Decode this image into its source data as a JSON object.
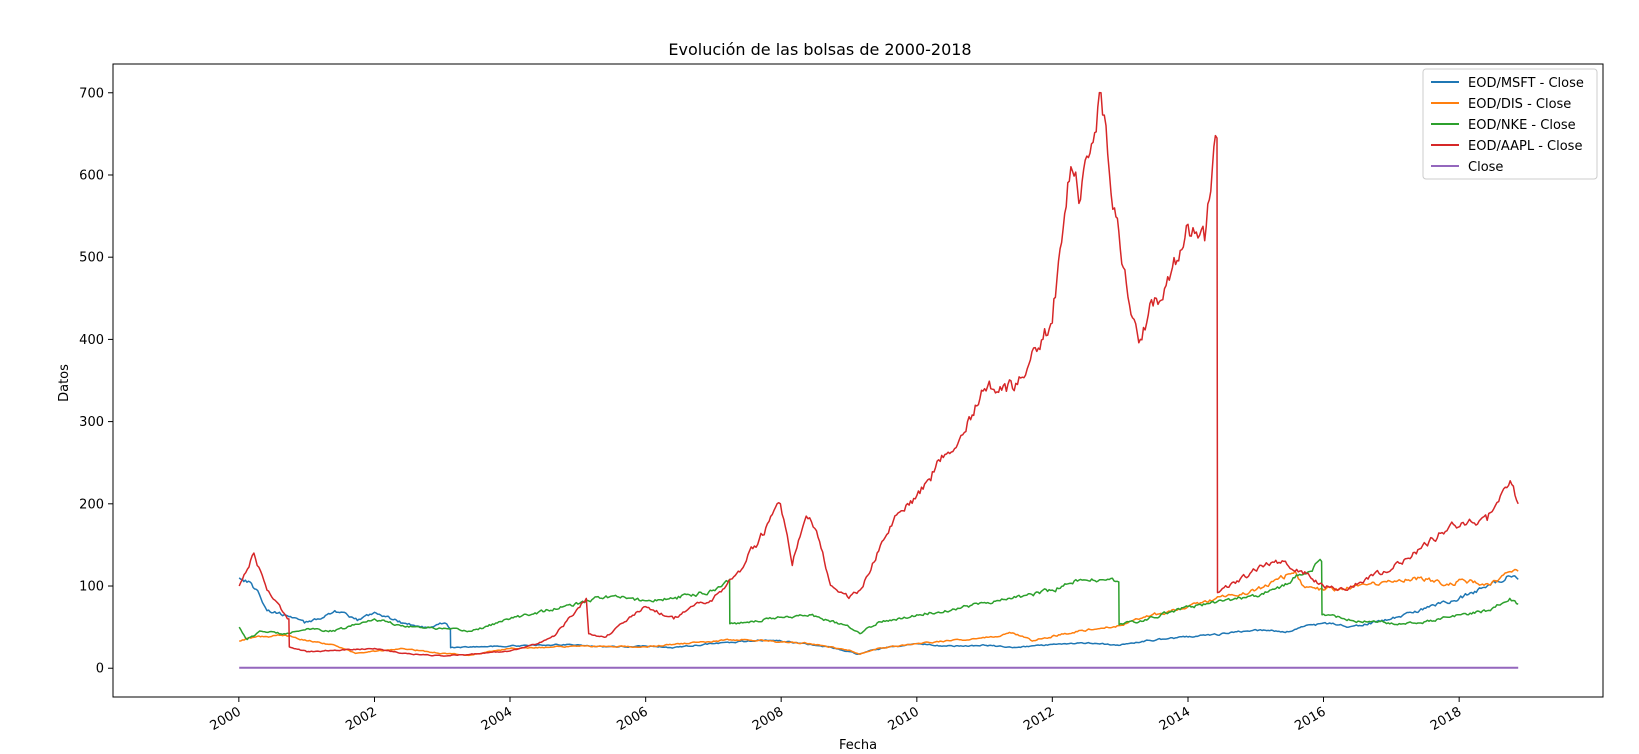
{
  "chart_data": {
    "type": "line",
    "title": "Evolución de las bolsas de 2000-2018",
    "xlabel": "Fecha",
    "ylabel": "Datos",
    "x_ticks": [
      "2000",
      "2002",
      "2004",
      "2006",
      "2008",
      "2010",
      "2012",
      "2014",
      "2016",
      "2018"
    ],
    "xlim": [
      "1998-02-22",
      "2020-02-15"
    ],
    "ylim": [
      -35,
      735
    ],
    "y_ticks": [
      0,
      100,
      200,
      300,
      400,
      500,
      600,
      700
    ],
    "grid": false,
    "legend_position": "top-right",
    "colors": {
      "msft": "#1f77b4",
      "dis": "#ff7f0e",
      "nke": "#2ca02c",
      "aapl": "#d62728",
      "close": "#9467bd"
    },
    "series": [
      {
        "key": "msft",
        "name": "EOD/MSFT - Close",
        "x": [
          "2000-01-03",
          "2000-03-01",
          "2000-04-20",
          "2000-06-01",
          "2000-09-01",
          "2000-12-20",
          "2001-03-01",
          "2001-06-01",
          "2001-10-01",
          "2002-01-01",
          "2002-06-01",
          "2002-10-01",
          "2003-01-15",
          "2003-02-14",
          "2003-02-15",
          "2003-06-01",
          "2004-01-01",
          "2004-11-01",
          "2005-06-01",
          "2006-01-01",
          "2006-06-01",
          "2007-01-01",
          "2007-10-01",
          "2008-01-01",
          "2008-06-01",
          "2008-10-01",
          "2009-02-15",
          "2009-06-01",
          "2010-01-01",
          "2010-06-01",
          "2011-01-01",
          "2011-06-01",
          "2012-01-01",
          "2012-06-01",
          "2013-01-01",
          "2013-06-01",
          "2014-01-01",
          "2014-06-01",
          "2015-01-01",
          "2015-06-01",
          "2016-01-01",
          "2016-06-01",
          "2017-01-01",
          "2017-06-01",
          "2018-01-01",
          "2018-06-01",
          "2018-10-01",
          "2018-11-15"
        ],
        "values": [
          110,
          105,
          90,
          70,
          65,
          55,
          60,
          70,
          58,
          68,
          55,
          50,
          55,
          48,
          25,
          26,
          27,
          29,
          26,
          27,
          25,
          30,
          34,
          33,
          29,
          25,
          17,
          23,
          30,
          27,
          28,
          25,
          29,
          31,
          28,
          34,
          38,
          41,
          47,
          44,
          55,
          51,
          60,
          70,
          85,
          100,
          112,
          108
        ]
      },
      {
        "key": "dis",
        "name": "EOD/DIS - Close",
        "x": [
          "2000-01-03",
          "2000-04-01",
          "2000-09-01",
          "2001-03-01",
          "2001-06-01",
          "2001-09-20",
          "2002-06-01",
          "2003-01-01",
          "2003-06-01",
          "2004-01-01",
          "2005-01-01",
          "2006-01-01",
          "2007-01-01",
          "2007-06-01",
          "2008-01-01",
          "2008-06-01",
          "2009-01-01",
          "2009-03-01",
          "2009-06-01",
          "2010-01-01",
          "2010-06-01",
          "2011-01-01",
          "2011-06-01",
          "2011-09-15",
          "2012-01-01",
          "2012-06-01",
          "2013-01-01",
          "2013-06-01",
          "2014-01-01",
          "2014-06-01",
          "2015-01-01",
          "2015-08-01",
          "2015-09-15",
          "2016-01-01",
          "2016-06-01",
          "2017-01-01",
          "2017-06-01",
          "2017-12-01",
          "2018-01-01",
          "2018-06-01",
          "2018-11-15"
        ],
        "values": [
          33,
          38,
          40,
          32,
          28,
          18,
          24,
          18,
          16,
          24,
          27,
          26,
          33,
          35,
          32,
          30,
          22,
          17,
          24,
          30,
          33,
          37,
          43,
          33,
          39,
          46,
          52,
          63,
          75,
          85,
          95,
          118,
          100,
          95,
          98,
          105,
          110,
          101,
          108,
          103,
          118
        ]
      },
      {
        "key": "nke",
        "name": "EOD/NKE - Close",
        "x": [
          "2000-01-03",
          "2000-02-15",
          "2000-05-01",
          "2000-09-01",
          "2001-01-01",
          "2001-06-01",
          "2002-01-01",
          "2002-06-01",
          "2003-01-01",
          "2003-06-01",
          "2004-01-01",
          "2004-06-01",
          "2005-01-01",
          "2005-06-01",
          "2006-01-01",
          "2006-06-01",
          "2007-01-01",
          "2007-03-29",
          "2007-03-30",
          "2008-01-01",
          "2008-06-01",
          "2009-01-01",
          "2009-03-01",
          "2009-06-01",
          "2010-01-01",
          "2010-06-01",
          "2011-01-01",
          "2011-06-01",
          "2012-01-01",
          "2012-06-01",
          "2012-12-24",
          "2012-12-26",
          "2013-06-01",
          "2014-01-01",
          "2014-06-01",
          "2015-01-01",
          "2015-06-01",
          "2015-12-22",
          "2015-12-24",
          "2016-06-01",
          "2017-01-01",
          "2017-06-01",
          "2018-01-01",
          "2018-06-01",
          "2018-10-01",
          "2018-11-15"
        ],
        "values": [
          50,
          35,
          45,
          42,
          48,
          45,
          60,
          52,
          48,
          45,
          60,
          68,
          78,
          88,
          82,
          85,
          95,
          108,
          54,
          62,
          65,
          50,
          42,
          55,
          65,
          70,
          80,
          85,
          95,
          108,
          105,
          53,
          60,
          75,
          80,
          88,
          100,
          130,
          65,
          58,
          55,
          55,
          65,
          70,
          85,
          78
        ]
      },
      {
        "key": "aapl",
        "name": "EOD/AAPL - Close",
        "x": [
          "2000-01-03",
          "2000-03-22",
          "2000-06-01",
          "2000-09-27",
          "2000-09-29",
          "2001-01-01",
          "2001-06-01",
          "2002-01-01",
          "2002-06-01",
          "2003-01-01",
          "2003-06-01",
          "2004-01-01",
          "2004-06-01",
          "2004-09-01",
          "2005-02-15",
          "2005-02-28",
          "2005-06-01",
          "2005-09-01",
          "2006-01-01",
          "2006-06-01",
          "2006-09-01",
          "2007-01-01",
          "2007-06-01",
          "2007-12-28",
          "2008-03-01",
          "2008-05-15",
          "2008-07-01",
          "2008-10-01",
          "2008-12-31",
          "2009-03-01",
          "2009-06-01",
          "2009-10-01",
          "2010-01-01",
          "2010-06-01",
          "2010-10-01",
          "2011-01-01",
          "2011-06-01",
          "2011-10-01",
          "2012-01-01",
          "2012-04-10",
          "2012-06-01",
          "2012-09-19",
          "2012-12-01",
          "2013-01-01",
          "2013-04-19",
          "2013-06-01",
          "2013-10-01",
          "2014-01-01",
          "2014-04-01",
          "2014-06-06",
          "2014-06-09",
          "2014-10-01",
          "2015-02-01",
          "2015-06-01",
          "2015-10-01",
          "2016-01-01",
          "2016-05-01",
          "2016-10-01",
          "2017-01-01",
          "2017-06-01",
          "2017-12-01",
          "2018-06-01",
          "2018-10-03",
          "2018-11-15"
        ],
        "values": [
          100,
          140,
          95,
          60,
          26,
          20,
          22,
          24,
          18,
          15,
          17,
          21,
          30,
          40,
          85,
          42,
          38,
          55,
          75,
          60,
          75,
          85,
          120,
          200,
          125,
          185,
          170,
          100,
          85,
          95,
          140,
          190,
          210,
          260,
          300,
          340,
          340,
          390,
          420,
          610,
          570,
          700,
          560,
          510,
          400,
          430,
          480,
          540,
          520,
          645,
          92,
          105,
          125,
          130,
          115,
          100,
          95,
          115,
          120,
          145,
          175,
          180,
          228,
          200
        ]
      },
      {
        "key": "close",
        "name": "Close",
        "x": [
          "2000-01-03",
          "2018-11-15"
        ],
        "values": [
          0.5,
          0.5
        ]
      }
    ]
  }
}
